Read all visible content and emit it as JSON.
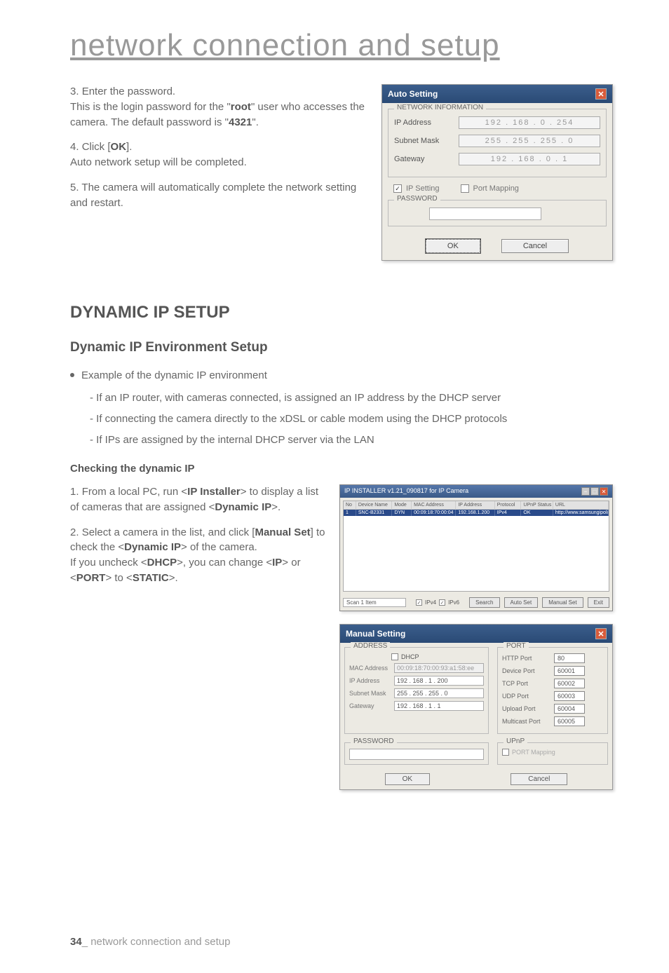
{
  "page_title": "network connection and setup",
  "steps_top": [
    {
      "n": "3.",
      "text": "Enter the password.",
      "cont": "This is the login password for the \"",
      "bold1": "root",
      "cont2": "\" user who accesses the camera. The default password is \"",
      "bold2": "4321",
      "cont3": "\"."
    },
    {
      "n": "4.",
      "text": "Click [",
      "bold1": "OK",
      "cont2": "].",
      "sub": "Auto network setup will be completed."
    },
    {
      "n": "5.",
      "text": "The camera will automatically complete the network setting and restart."
    }
  ],
  "auto_dialog": {
    "title": "Auto Setting",
    "section1": "NETWORK INFORMATION",
    "ip_label": "IP Address",
    "ip_value": "192 . 168 .  0 . 254",
    "subnet_label": "Subnet Mask",
    "subnet_value": "255 . 255 . 255 .  0",
    "gateway_label": "Gateway",
    "gateway_value": "192 . 168 .  0 .  1",
    "cb1": "IP Setting",
    "cb1_checked": "✓",
    "cb2": "Port Mapping",
    "section2": "PASSWORD",
    "ok": "OK",
    "cancel": "Cancel"
  },
  "section_heading": "DYNAMIC IP SETUP",
  "sub_heading": "Dynamic IP Environment Setup",
  "bullet": "Example of the dynamic IP environment",
  "dashes": [
    "- If an IP router, with cameras connected, is assigned an IP address by the DHCP server",
    "- If connecting the camera directly to the xDSL or cable modem using the DHCP protocols",
    "- If IPs are assigned by the internal DHCP server via the LAN"
  ],
  "checking_heading": "Checking the dynamic IP",
  "steps_bottom": [
    {
      "n": "1.",
      "parts": [
        "From a local PC, run <",
        "IP Installer",
        "> to display a list of cameras that are assigned <",
        "Dynamic IP",
        ">."
      ]
    },
    {
      "n": "2.",
      "parts": [
        "Select a camera in the list, and click [",
        "Manual Set",
        "] to check the <",
        "Dynamic IP",
        "> of the camera.",
        "If you uncheck <",
        "DHCP",
        ">, you can change <",
        "IP",
        "> or <",
        "PORT",
        "> to <",
        "STATIC",
        ">."
      ]
    }
  ],
  "installer": {
    "title": "IP INSTALLER v1.21_090817 for IP Camera",
    "columns": [
      "No",
      "Device Name",
      "Mode",
      "MAC Address",
      "IP Address",
      "Protocol",
      "UPnP Status",
      "URL"
    ],
    "col_widths": [
      "18px",
      "52px",
      "28px",
      "64px",
      "56px",
      "38px",
      "46px",
      "80px"
    ],
    "row": [
      "1",
      "SNC-B2331",
      "DYN",
      "00:09:18:70:00:04",
      "192.168.1.200",
      "IPv4",
      "OK",
      "http://www.samsungipolis.com/7000..."
    ],
    "scan": "Scan 1 Item",
    "ipv4_label": "IPv4",
    "ipv6_label": "IPv6",
    "search": "Search",
    "auto": "Auto Set",
    "manual": "Manual Set",
    "exit": "Exit"
  },
  "manual": {
    "title": "Manual Setting",
    "addr_label": "ADDRESS",
    "port_label": "PORT",
    "dhcp": "DHCP",
    "mac_label": "MAC Address",
    "mac_value": "00:09:18:70:00:93:a1:58:ee",
    "ip_label": "IP Address",
    "ip_value": "192 . 168 .   1 . 200",
    "subnet_label": "Subnet Mask",
    "subnet_value": "255 . 255 . 255 .   0",
    "gateway_label": "Gateway",
    "gateway_value": "192 . 168 .   1 .   1",
    "ports": [
      {
        "label": "HTTP Port",
        "value": "80"
      },
      {
        "label": "Device Port",
        "value": "60001"
      },
      {
        "label": "TCP Port",
        "value": "60002"
      },
      {
        "label": "UDP Port",
        "value": "60003"
      },
      {
        "label": "Upload Port",
        "value": "60004"
      },
      {
        "label": "Multicast Port",
        "value": "60005"
      }
    ],
    "pw_label": "PASSWORD",
    "upnp_label": "UPnP",
    "upnp_map": "PORT Mapping",
    "ok": "OK",
    "cancel": "Cancel"
  },
  "footer": {
    "page_num": "34",
    "text": "_ network connection and setup"
  }
}
